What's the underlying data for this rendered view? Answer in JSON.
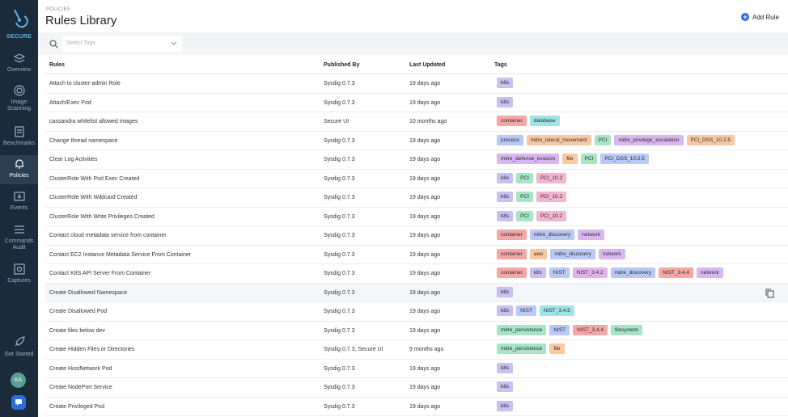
{
  "sidebar": {
    "brand_label": "SECURE",
    "items": [
      {
        "icon": "overview-icon",
        "label": "Overview",
        "label2": ""
      },
      {
        "icon": "image-scanning-icon",
        "label": "Image",
        "label2": "Scanning"
      },
      {
        "icon": "benchmarks-icon",
        "label": "Benchmarks",
        "label2": ""
      },
      {
        "icon": "policies-icon",
        "label": "Policies",
        "label2": "",
        "active": true
      },
      {
        "icon": "events-icon",
        "label": "Events",
        "label2": ""
      },
      {
        "icon": "commands-audit-icon",
        "label": "Commands",
        "label2": "Audit"
      },
      {
        "icon": "captures-icon",
        "label": "Captures",
        "label2": ""
      }
    ],
    "get_started": "Get Started",
    "avatar_initials": "KA"
  },
  "header": {
    "breadcrumb": "POLICIES",
    "title": "Rules Library",
    "add_rule_label": "Add Rule"
  },
  "filter": {
    "placeholder": "Select Tags"
  },
  "table": {
    "columns": [
      "Rules",
      "Published By",
      "Last Updated",
      "Tags"
    ],
    "rows": [
      {
        "name": "Attach to cluster-admin Role",
        "pub": "Sysdig 0.7.3",
        "upd": "19 days ago",
        "tags": [
          "k8s"
        ]
      },
      {
        "name": "Attach/Exec Pod",
        "pub": "Sysdig 0.7.3",
        "upd": "19 days ago",
        "tags": [
          "k8s"
        ]
      },
      {
        "name": "cassandra whitelist allowed images",
        "pub": "Secure UI",
        "upd": "10 months ago",
        "tags": [
          "container",
          "database"
        ]
      },
      {
        "name": "Change thread namespace",
        "pub": "Sysdig 0.7.3",
        "upd": "19 days ago",
        "tags": [
          "process",
          "mitre_lateral_movement",
          "PCI",
          "mitre_privilege_escalation",
          "PCI_DSS_10.2.5"
        ]
      },
      {
        "name": "Clear Log Activities",
        "pub": "Sysdig 0.7.3",
        "upd": "19 days ago",
        "tags": [
          "mitre_defense_evasion",
          "file",
          "PCI",
          "PCI_DSS_10.5.5"
        ]
      },
      {
        "name": "ClusterRole With Pod Exec Created",
        "pub": "Sysdig 0.7.3",
        "upd": "19 days ago",
        "tags": [
          "k8s",
          "PCI",
          "PCI_10.2"
        ]
      },
      {
        "name": "ClusterRole With Wildcard Created",
        "pub": "Sysdig 0.7.3",
        "upd": "19 days ago",
        "tags": [
          "k8s",
          "PCI",
          "PCI_10.2"
        ]
      },
      {
        "name": "ClusterRole With Write Privileges Created",
        "pub": "Sysdig 0.7.3",
        "upd": "19 days ago",
        "tags": [
          "k8s",
          "PCI",
          "PCI_10.2"
        ]
      },
      {
        "name": "Contact cloud metadata service from container",
        "pub": "Sysdig 0.7.3",
        "upd": "19 days ago",
        "tags": [
          "container",
          "mitre_discovery",
          "network"
        ]
      },
      {
        "name": "Contact EC2 Instance Metadata Service From Container",
        "pub": "Sysdig 0.7.3",
        "upd": "19 days ago",
        "tags": [
          "container",
          "aws",
          "mitre_discovery",
          "network"
        ]
      },
      {
        "name": "Contact K8S API Server From Container",
        "pub": "Sysdig 0.7.3",
        "upd": "19 days ago",
        "tags": [
          "container",
          "k8s",
          "NIST",
          "NIST_3.4.2",
          "mitre_discovery",
          "NIST_3.4.4",
          "network"
        ]
      },
      {
        "name": "Create Disallowed Namespace",
        "pub": "Sysdig 0.7.3",
        "upd": "19 days ago",
        "tags": [
          "k8s"
        ],
        "highlight": true
      },
      {
        "name": "Create Disallowed Pod",
        "pub": "Sysdig 0.7.3",
        "upd": "19 days ago",
        "tags": [
          "k8s",
          "NIST",
          "NIST_3.4.5"
        ]
      },
      {
        "name": "Create files below dev",
        "pub": "Sysdig 0.7.3",
        "upd": "19 days ago",
        "tags": [
          "mitre_persistence",
          "NIST",
          "NIST_3.4.4",
          "filesystem"
        ]
      },
      {
        "name": "Create Hidden Files or Directories",
        "pub": "Sysdig 0.7.3, Secure UI",
        "upd": "9 months ago",
        "tags": [
          "mitre_persistence",
          "file"
        ]
      },
      {
        "name": "Create HostNetwork Pod",
        "pub": "Sysdig 0.7.3",
        "upd": "19 days ago",
        "tags": [
          "k8s"
        ]
      },
      {
        "name": "Create NodePort Service",
        "pub": "Sysdig 0.7.3",
        "upd": "19 days ago",
        "tags": [
          "k8s"
        ]
      },
      {
        "name": "Create Privileged Pod",
        "pub": "Sysdig 0.7.3",
        "upd": "19 days ago",
        "tags": [
          "k8s"
        ]
      }
    ]
  },
  "tag_colors": {
    "k8s": "#c9bff0",
    "container": "#f4a7a5",
    "database": "#9ee3e6",
    "process": "#b9c8f4",
    "mitre_lateral_movement": "#f7c8a3",
    "PCI": "#a6e5c6",
    "mitre_privilege_escalation": "#d8b6ef",
    "PCI_DSS_10.2.5": "#f7c8a3",
    "mitre_defense_evasion": "#d8b6ef",
    "file": "#f9c9a0",
    "PCI_DSS_10.5.5": "#b9c8f4",
    "PCI_10.2": "#f3b5d0",
    "mitre_discovery": "#b9c8f4",
    "network": "#d8b6ef",
    "aws": "#f7c8a3",
    "NIST": "#b9c8f4",
    "NIST_3.4.2": "#e3b3ec",
    "NIST_3.4.4": "#f4a7a5",
    "NIST_3.4.5": "#9ee3e6",
    "mitre_persistence": "#a6e5c6",
    "filesystem": "#a6e5c6"
  }
}
